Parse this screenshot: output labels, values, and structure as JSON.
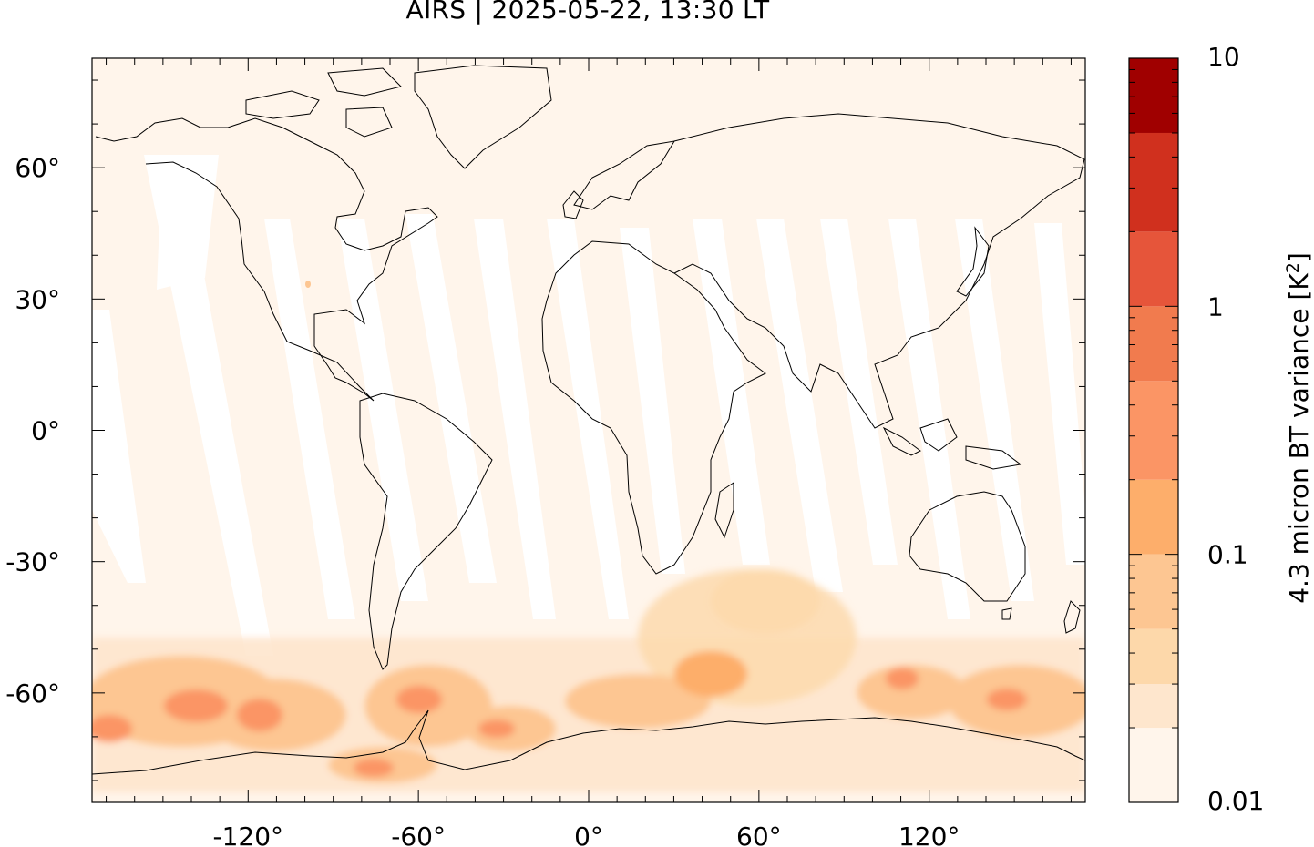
{
  "title": "AIRS | 2025-05-22, 13:30 LT",
  "map": {
    "lon_ticks": [
      {
        "value": -120,
        "label": "-120°"
      },
      {
        "value": -60,
        "label": "-60°"
      },
      {
        "value": 0,
        "label": "0°"
      },
      {
        "value": 60,
        "label": "60°"
      },
      {
        "value": 120,
        "label": "120°"
      }
    ],
    "lat_ticks": [
      {
        "value": 60,
        "label": "60°"
      },
      {
        "value": 30,
        "label": "30°"
      },
      {
        "value": 0,
        "label": "0°"
      },
      {
        "value": -30,
        "label": "-30°"
      },
      {
        "value": -60,
        "label": "-60°"
      }
    ],
    "lon_range": [
      -175,
      175
    ],
    "lat_range": [
      -85,
      85
    ],
    "background_color": "#fff5eb",
    "coastline_color": "#000000"
  },
  "colorbar": {
    "label_main": "4.3 micron BT variance [K",
    "label_sup": "2",
    "label_end": "]",
    "scale": "log",
    "tick_labels": [
      {
        "value": 10,
        "label": "10"
      },
      {
        "value": 1,
        "label": "1"
      },
      {
        "value": 0.1,
        "label": "0.1"
      },
      {
        "value": 0.01,
        "label": "0.01"
      }
    ],
    "levels": [
      {
        "from": 0.01,
        "to": 0.02,
        "color": "#fff5eb"
      },
      {
        "from": 0.02,
        "to": 0.03,
        "color": "#fee6cd"
      },
      {
        "from": 0.03,
        "to": 0.05,
        "color": "#fdd8aa"
      },
      {
        "from": 0.05,
        "to": 0.1,
        "color": "#fdc692"
      },
      {
        "from": 0.1,
        "to": 0.2,
        "color": "#fdae6b"
      },
      {
        "from": 0.2,
        "to": 0.5,
        "color": "#fb9565"
      },
      {
        "from": 0.5,
        "to": 1,
        "color": "#f17b4e"
      },
      {
        "from": 1,
        "to": 2,
        "color": "#e6553a"
      },
      {
        "from": 2,
        "to": 5,
        "color": "#d0301e"
      },
      {
        "from": 5,
        "to": 10,
        "color": "#a00000"
      }
    ]
  }
}
